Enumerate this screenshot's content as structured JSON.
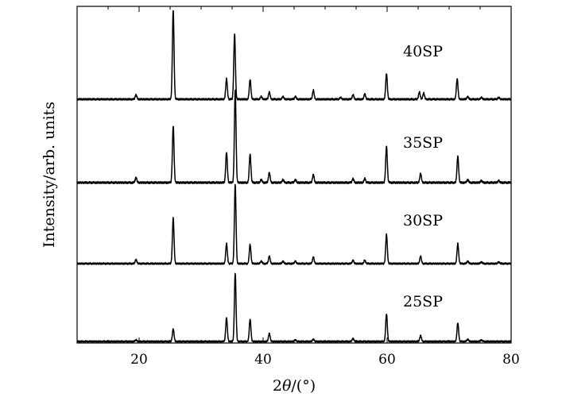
{
  "chart_data": {
    "type": "line",
    "title": "",
    "xlabel": "2θ/(°)",
    "ylabel": "Intensity/arb. units",
    "xlim": [
      10,
      80
    ],
    "x_ticks": [
      20,
      40,
      60,
      80
    ],
    "grid": false,
    "legend": "none",
    "line_color": "#000000",
    "series": [
      {
        "name": "40SP",
        "peaks": [
          {
            "x": 19.5,
            "y": 0.05
          },
          {
            "x": 25.5,
            "y": 1.0
          },
          {
            "x": 34.1,
            "y": 0.23
          },
          {
            "x": 35.4,
            "y": 0.73
          },
          {
            "x": 37.9,
            "y": 0.22
          },
          {
            "x": 39.7,
            "y": 0.03
          },
          {
            "x": 41.0,
            "y": 0.08
          },
          {
            "x": 43.2,
            "y": 0.03
          },
          {
            "x": 45.2,
            "y": 0.03
          },
          {
            "x": 48.1,
            "y": 0.1
          },
          {
            "x": 52.5,
            "y": 0.02
          },
          {
            "x": 54.5,
            "y": 0.05
          },
          {
            "x": 56.4,
            "y": 0.06
          },
          {
            "x": 59.9,
            "y": 0.29
          },
          {
            "x": 65.2,
            "y": 0.08
          },
          {
            "x": 65.9,
            "y": 0.07
          },
          {
            "x": 71.3,
            "y": 0.23
          },
          {
            "x": 73.0,
            "y": 0.03
          },
          {
            "x": 75.2,
            "y": 0.02
          },
          {
            "x": 78.0,
            "y": 0.02
          }
        ]
      },
      {
        "name": "35SP",
        "peaks": [
          {
            "x": 19.5,
            "y": 0.05
          },
          {
            "x": 25.5,
            "y": 0.56
          },
          {
            "x": 34.1,
            "y": 0.3
          },
          {
            "x": 35.5,
            "y": 0.92
          },
          {
            "x": 37.9,
            "y": 0.28
          },
          {
            "x": 39.7,
            "y": 0.03
          },
          {
            "x": 41.0,
            "y": 0.1
          },
          {
            "x": 43.2,
            "y": 0.03
          },
          {
            "x": 45.2,
            "y": 0.03
          },
          {
            "x": 48.1,
            "y": 0.08
          },
          {
            "x": 54.5,
            "y": 0.04
          },
          {
            "x": 56.4,
            "y": 0.04
          },
          {
            "x": 59.9,
            "y": 0.36
          },
          {
            "x": 65.4,
            "y": 0.09
          },
          {
            "x": 71.4,
            "y": 0.26
          },
          {
            "x": 73.0,
            "y": 0.03
          },
          {
            "x": 75.2,
            "y": 0.02
          },
          {
            "x": 78.0,
            "y": 0.02
          }
        ]
      },
      {
        "name": "30SP",
        "peaks": [
          {
            "x": 19.5,
            "y": 0.05
          },
          {
            "x": 25.5,
            "y": 0.55
          },
          {
            "x": 34.1,
            "y": 0.24
          },
          {
            "x": 35.5,
            "y": 0.95
          },
          {
            "x": 37.9,
            "y": 0.23
          },
          {
            "x": 39.7,
            "y": 0.03
          },
          {
            "x": 41.0,
            "y": 0.09
          },
          {
            "x": 43.2,
            "y": 0.03
          },
          {
            "x": 45.2,
            "y": 0.03
          },
          {
            "x": 48.1,
            "y": 0.08
          },
          {
            "x": 54.5,
            "y": 0.04
          },
          {
            "x": 56.4,
            "y": 0.04
          },
          {
            "x": 59.9,
            "y": 0.35
          },
          {
            "x": 65.4,
            "y": 0.09
          },
          {
            "x": 71.4,
            "y": 0.24
          },
          {
            "x": 73.0,
            "y": 0.03
          },
          {
            "x": 75.2,
            "y": 0.02
          },
          {
            "x": 78.0,
            "y": 0.02
          }
        ]
      },
      {
        "name": "25SP",
        "peaks": [
          {
            "x": 19.5,
            "y": 0.02
          },
          {
            "x": 25.5,
            "y": 0.17
          },
          {
            "x": 34.1,
            "y": 0.32
          },
          {
            "x": 35.5,
            "y": 0.92
          },
          {
            "x": 37.9,
            "y": 0.3
          },
          {
            "x": 41.0,
            "y": 0.11
          },
          {
            "x": 45.2,
            "y": 0.02
          },
          {
            "x": 48.1,
            "y": 0.03
          },
          {
            "x": 54.5,
            "y": 0.04
          },
          {
            "x": 59.9,
            "y": 0.37
          },
          {
            "x": 65.4,
            "y": 0.08
          },
          {
            "x": 71.4,
            "y": 0.25
          },
          {
            "x": 73.0,
            "y": 0.03
          },
          {
            "x": 75.2,
            "y": 0.02
          }
        ]
      }
    ]
  }
}
